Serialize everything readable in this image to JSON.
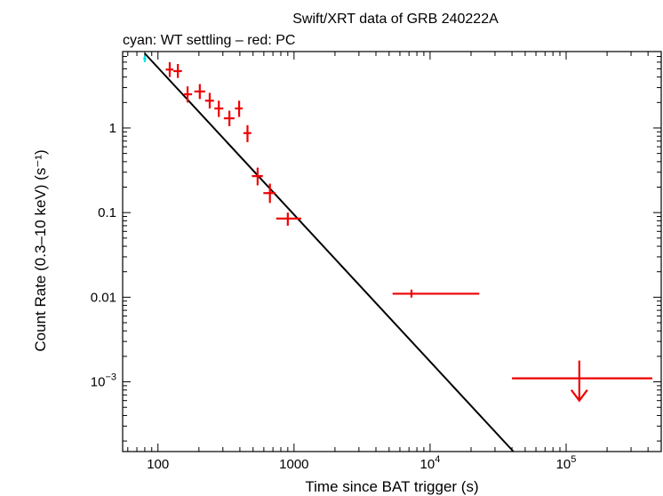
{
  "chart_data": {
    "type": "scatter",
    "title": "Swift/XRT data of GRB 240222A",
    "subtitle": "cyan: WT settling – red: PC",
    "xlabel": "Time since BAT trigger (s)",
    "ylabel": "Count Rate (0.3–10 keV) (s⁻¹)",
    "x_scale": "log",
    "y_scale": "log",
    "xlim": [
      55,
      500000
    ],
    "ylim": [
      0.00015,
      8
    ],
    "x_ticks": [
      {
        "value": 100,
        "label": "100"
      },
      {
        "value": 1000,
        "label": "1000"
      },
      {
        "value": 10000,
        "base": "10",
        "exp": "4"
      },
      {
        "value": 100000,
        "base": "10",
        "exp": "5"
      }
    ],
    "y_ticks": [
      {
        "value": 1,
        "label": "1"
      },
      {
        "value": 0.1,
        "label": "0.1"
      },
      {
        "value": 0.01,
        "label": "0.01"
      },
      {
        "value": 0.001,
        "base": "10",
        "exp": "−3"
      }
    ],
    "grid": false,
    "series": [
      {
        "name": "WT settling",
        "color": "#00e5e5",
        "points": [
          {
            "x": 80,
            "xlo": 78,
            "xhi": 82,
            "y": 6.6,
            "ylo": 6.0,
            "yhi": 7.2
          }
        ]
      },
      {
        "name": "PC",
        "color": "#ee0000",
        "points": [
          {
            "x": 122,
            "xlo": 114,
            "xhi": 130,
            "y": 4.9,
            "ylo": 4.0,
            "yhi": 6.0
          },
          {
            "x": 140,
            "xlo": 130,
            "xhi": 150,
            "y": 4.7,
            "ylo": 3.9,
            "yhi": 5.7
          },
          {
            "x": 165,
            "xlo": 155,
            "xhi": 178,
            "y": 2.5,
            "ylo": 2.0,
            "yhi": 3.1
          },
          {
            "x": 203,
            "xlo": 185,
            "xhi": 222,
            "y": 2.7,
            "ylo": 2.2,
            "yhi": 3.3
          },
          {
            "x": 240,
            "xlo": 222,
            "xhi": 258,
            "y": 2.1,
            "ylo": 1.7,
            "yhi": 2.6
          },
          {
            "x": 280,
            "xlo": 260,
            "xhi": 302,
            "y": 1.7,
            "ylo": 1.35,
            "yhi": 2.1
          },
          {
            "x": 335,
            "xlo": 305,
            "xhi": 365,
            "y": 1.3,
            "ylo": 1.05,
            "yhi": 1.6
          },
          {
            "x": 395,
            "xlo": 368,
            "xhi": 420,
            "y": 1.7,
            "ylo": 1.35,
            "yhi": 2.1
          },
          {
            "x": 455,
            "xlo": 425,
            "xhi": 485,
            "y": 0.87,
            "ylo": 0.68,
            "yhi": 1.08
          },
          {
            "x": 540,
            "xlo": 490,
            "xhi": 590,
            "y": 0.27,
            "ylo": 0.21,
            "yhi": 0.34
          },
          {
            "x": 665,
            "xlo": 595,
            "xhi": 730,
            "y": 0.17,
            "ylo": 0.13,
            "yhi": 0.22
          },
          {
            "x": 900,
            "xlo": 740,
            "xhi": 1130,
            "y": 0.085,
            "ylo": 0.07,
            "yhi": 0.1
          },
          {
            "x": 7300,
            "xlo": 5300,
            "xhi": 23000,
            "y": 0.011,
            "ylo": 0.0099,
            "yhi": 0.0123
          }
        ]
      }
    ],
    "upper_limits": [
      {
        "series": "PC",
        "color": "#ee0000",
        "x": 125000,
        "xlo": 40000,
        "xhi": 440000,
        "y": 0.0011,
        "arrow_to": 0.0006
      }
    ],
    "model": {
      "type": "power-law",
      "color": "#000000",
      "points": [
        {
          "x": 80,
          "y": 7.6
        },
        {
          "x": 41000,
          "y": 0.00015
        }
      ]
    }
  }
}
